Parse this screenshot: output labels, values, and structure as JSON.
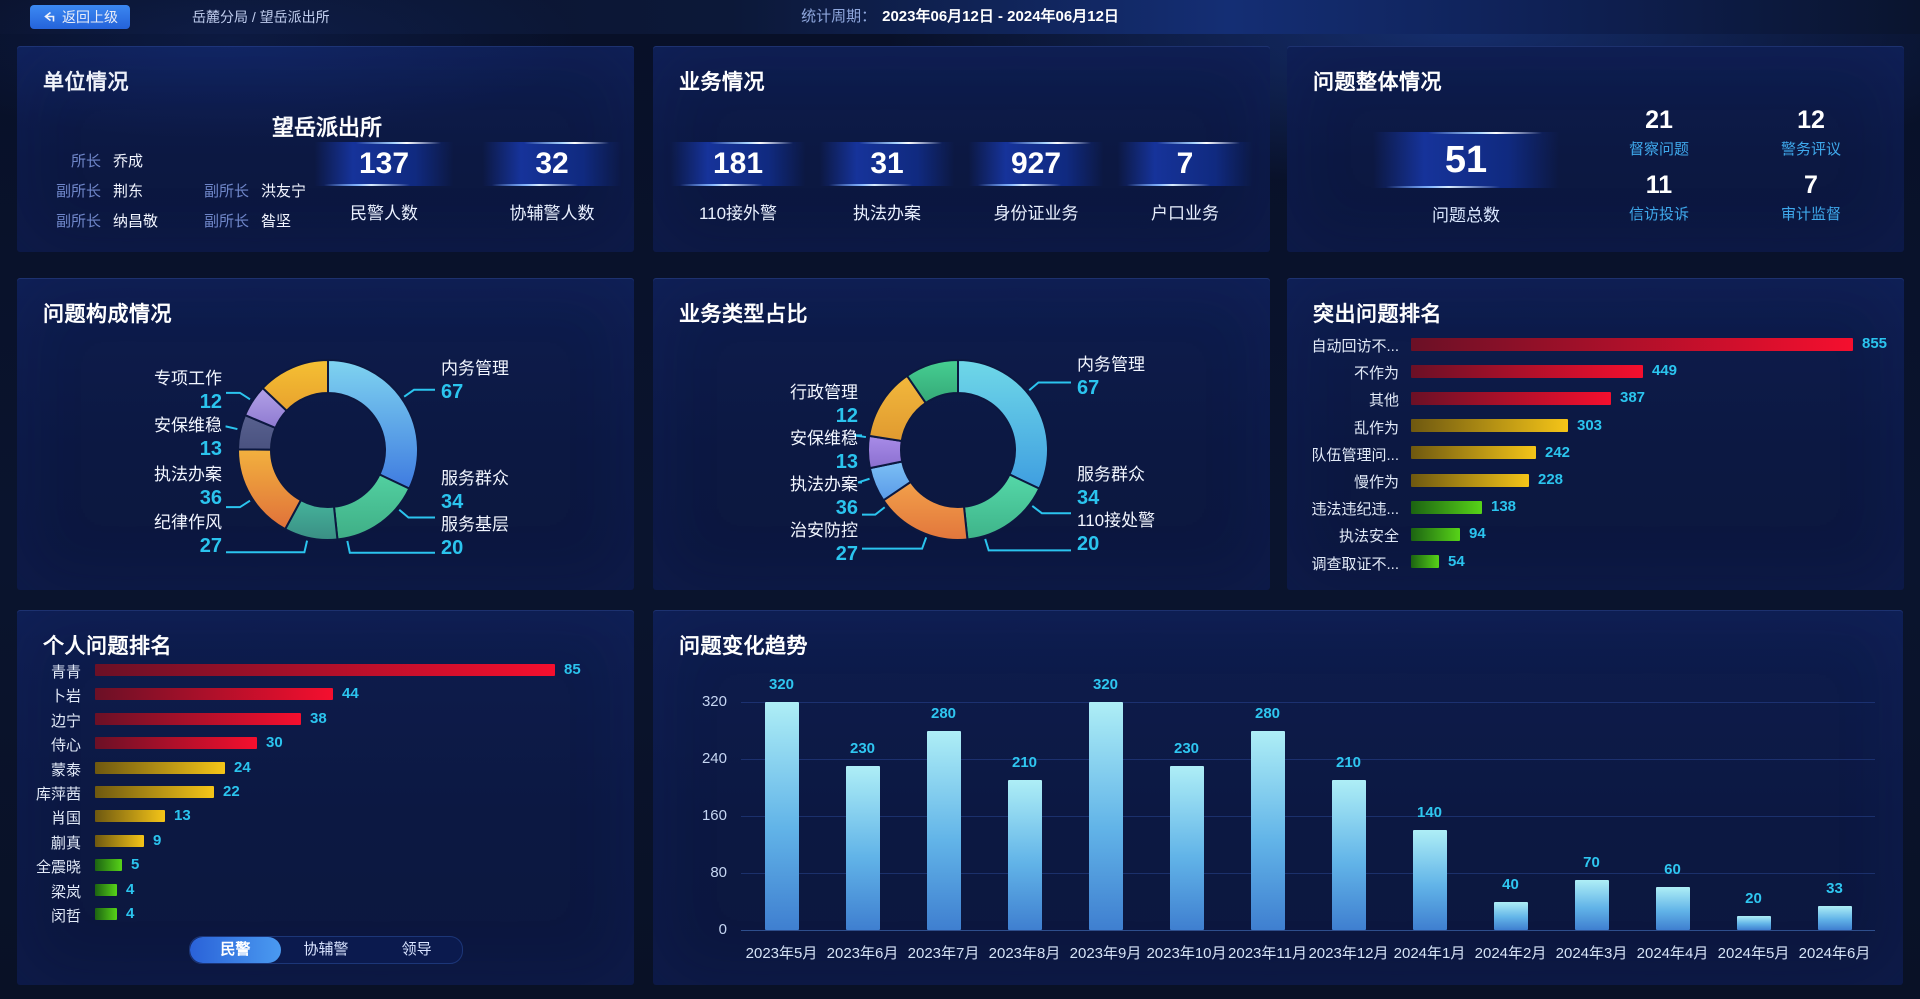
{
  "header": {
    "back_label": "返回上级",
    "breadcrumb": "岳麓分局 / 望岳派出所",
    "period_label": "统计周期：",
    "period_value": "2023年06月12日 - 2024年06月12日"
  },
  "colors": {
    "accent_cyan": "#2bc4ee",
    "panel_bg": "#0c1842",
    "tier_red": [
      "#6b1026",
      "#f50f2e"
    ],
    "tier_gold": [
      "#6e5810",
      "#f5c518"
    ],
    "tier_green": [
      "#1c6312",
      "#57d318"
    ],
    "trend_bar": [
      "#aeeef6",
      "#3f7fd0"
    ],
    "back_button_blue": "#2e7ff0"
  },
  "unit_panel": {
    "title": "单位情况",
    "station_name": "望岳派出所",
    "leaders": [
      {
        "role": "所长",
        "name": "乔成"
      },
      {
        "role": "副所长",
        "name": "荆东"
      },
      {
        "role": "副所长",
        "name": "洪友宁"
      },
      {
        "role": "副所长",
        "name": "纳昌敬"
      },
      {
        "role": "副所长",
        "name": "昝坚"
      }
    ],
    "stats": [
      {
        "value": "137",
        "label": "民警人数"
      },
      {
        "value": "32",
        "label": "协辅警人数"
      }
    ]
  },
  "business_panel": {
    "title": "业务情况",
    "stats": [
      {
        "value": "181",
        "label": "110接外警"
      },
      {
        "value": "31",
        "label": "执法办案"
      },
      {
        "value": "927",
        "label": "身份证业务"
      },
      {
        "value": "7",
        "label": "户口业务"
      }
    ]
  },
  "problem_panel": {
    "title": "问题整体情况",
    "total": {
      "value": "51",
      "label": "问题总数"
    },
    "stats": [
      {
        "value": "21",
        "label": "督察问题"
      },
      {
        "value": "12",
        "label": "警务评议"
      },
      {
        "value": "11",
        "label": "信访投诉"
      },
      {
        "value": "7",
        "label": "审计监督"
      }
    ]
  },
  "composition_panel": {
    "title": "问题构成情况"
  },
  "ratio_panel": {
    "title": "业务类型占比"
  },
  "outstanding_panel": {
    "title": "突出问题排名"
  },
  "personal_panel": {
    "title": "个人问题排名",
    "tabs": [
      {
        "label": "民警",
        "active": true
      },
      {
        "label": "协辅警",
        "active": false
      },
      {
        "label": "领导",
        "active": false
      }
    ]
  },
  "trend_panel": {
    "title": "问题变化趋势"
  },
  "chart_data": [
    {
      "id": "problem_composition",
      "type": "pie",
      "title": "问题构成情况",
      "labels": [
        "内务管理",
        "服务群众",
        "服务基层",
        "执法办案",
        "安保维稳",
        "专项工作",
        "纪律作风"
      ],
      "values": [
        67,
        34,
        20,
        36,
        13,
        12,
        27
      ],
      "colors": [
        [
          "#7fd4f0",
          "#3f7be0"
        ],
        [
          "#52d0a0",
          "#3fae86"
        ],
        [
          "#45b39b",
          "#3a8f84"
        ],
        [
          "#f2b13e",
          "#e0713a"
        ],
        [
          "#58618f",
          "#4a5280"
        ],
        [
          "#b3a2e8",
          "#8e7ad0"
        ],
        [
          "#f5c033",
          "#e8a22e"
        ]
      ],
      "legend_position": "around-labels"
    },
    {
      "id": "business_ratio",
      "type": "pie",
      "title": "业务类型占比",
      "labels": [
        "内务管理",
        "服务群众",
        "执法办案",
        "安保维稳",
        "行政管理",
        "治安防控",
        "110接处警"
      ],
      "values": [
        67,
        34,
        36,
        13,
        12,
        27,
        20
      ],
      "colors": [
        [
          "#6fd8e8",
          "#3f9ee0"
        ],
        [
          "#55d8a8",
          "#3eb389"
        ],
        [
          "#f2a04a",
          "#e2763c"
        ],
        [
          "#7cc0f5",
          "#5a9ae8"
        ],
        [
          "#a88ce8",
          "#8b6fd0"
        ],
        [
          "#f2b83c",
          "#e09a30"
        ],
        [
          "#46cf92",
          "#35a877"
        ]
      ],
      "legend_position": "around-labels"
    },
    {
      "id": "outstanding_problems",
      "type": "bar",
      "orientation": "horizontal",
      "title": "突出问题排名",
      "categories": [
        "自动回访不...",
        "不作为",
        "其他",
        "乱作为",
        "队伍管理问...",
        "慢作为",
        "违法违纪违...",
        "执法安全",
        "调查取证不..."
      ],
      "values": [
        855,
        449,
        387,
        303,
        242,
        228,
        138,
        94,
        54
      ],
      "tiers": [
        "red",
        "red",
        "red",
        "gold",
        "gold",
        "gold",
        "green",
        "green",
        "green"
      ],
      "xlim": [
        0,
        900
      ],
      "grid": false
    },
    {
      "id": "personal_ranking",
      "type": "bar",
      "orientation": "horizontal",
      "title": "个人问题排名",
      "categories": [
        "青青",
        "卜岩",
        "边宁",
        "侍心",
        "蒙泰",
        "库萍茜",
        "肖国",
        "蒯真",
        "全震晓",
        "梁岚",
        "闵哲"
      ],
      "values": [
        85,
        44,
        38,
        30,
        24,
        22,
        13,
        9,
        5,
        4,
        4
      ],
      "tiers": [
        "red",
        "red",
        "red",
        "red",
        "gold",
        "gold",
        "gold",
        "gold",
        "green",
        "green",
        "green"
      ],
      "xlim": [
        0,
        90
      ],
      "grid": false
    },
    {
      "id": "problem_trend",
      "type": "bar",
      "orientation": "vertical",
      "title": "问题变化趋势",
      "categories": [
        "2023年5月",
        "2023年6月",
        "2023年7月",
        "2023年8月",
        "2023年9月",
        "2023年10月",
        "2023年11月",
        "2023年12月",
        "2024年1月",
        "2024年2月",
        "2024年3月",
        "2024年4月",
        "2024年5月",
        "2024年6月"
      ],
      "values": [
        320,
        230,
        280,
        210,
        320,
        230,
        280,
        210,
        140,
        40,
        70,
        60,
        20,
        33
      ],
      "ylim": [
        0,
        320
      ],
      "yticks": [
        0,
        80,
        160,
        240,
        320
      ],
      "grid": true,
      "xlabel": "",
      "ylabel": ""
    }
  ]
}
